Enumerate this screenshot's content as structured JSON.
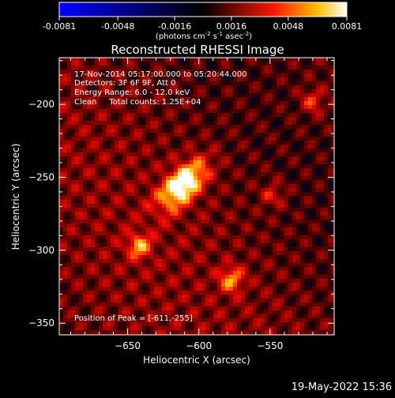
{
  "colorbar": {
    "min": -0.0081,
    "max": 0.0081,
    "tick_labels": [
      "-0.0081",
      "-0.0048",
      "-0.0016",
      "0.0016",
      "0.0048",
      "0.0081"
    ],
    "tick_values": [
      -0.0081,
      -0.0048,
      -0.0016,
      0.0016,
      0.0048,
      0.0081
    ],
    "unit_prefix": "(photons cm",
    "unit_exp1": "-2",
    "unit_mid1": " s",
    "unit_exp2": "-1",
    "unit_mid2": " asec",
    "unit_exp3": "-2",
    "unit_suffix": ")",
    "colors": [
      "#0000ff",
      "#000000",
      "#ff0000",
      "#ffff00",
      "#ffffff"
    ]
  },
  "chart_data": {
    "type": "heatmap",
    "title": "Reconstructed RHESSI Image",
    "xlabel": "Heliocentric X (arcsec)",
    "ylabel": "Heliocentric Y (arcsec)",
    "xlim": [
      -698,
      -505
    ],
    "ylim": [
      -358,
      -168
    ],
    "x_ticks": [
      -650,
      -600,
      -550
    ],
    "y_ticks": [
      -200,
      -250,
      -300,
      -350
    ],
    "x_tick_labels": [
      "−650",
      "−600",
      "−550"
    ],
    "y_tick_labels": [
      "−200",
      "−250",
      "−300",
      "−350"
    ],
    "peak": [
      -611,
      -255
    ],
    "sources": [
      {
        "x": -611,
        "y": -255,
        "intensity": 0.0081
      },
      {
        "x": -642,
        "y": -297,
        "intensity": 0.0045
      },
      {
        "x": -577,
        "y": -320,
        "intensity": 0.0046
      },
      {
        "x": -520,
        "y": -198,
        "intensity": 0.0032
      },
      {
        "x": -548,
        "y": -262,
        "intensity": 0.0026
      }
    ]
  },
  "overlay": {
    "time_range": "17-Nov-2014 05:17:00.000 to 05:20:44.000",
    "detectors": "Detectors: 3F 6F 9F, Att 0",
    "energy": "Energy Range: 6.0 - 12.0 keV",
    "clean": "Clean     Total counts: 1.25E+04",
    "peak_text": "Position of Peak = [-611,-255]"
  },
  "footer": {
    "timestamp": "19-May-2022 15:36"
  }
}
